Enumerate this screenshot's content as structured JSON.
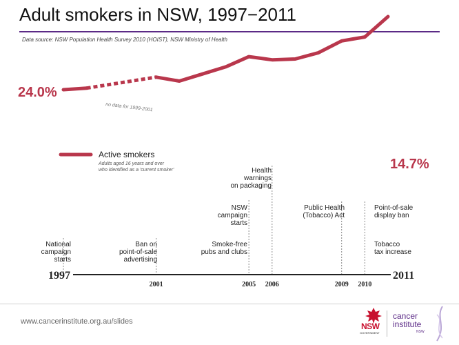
{
  "title": "Adult smokers in NSW, 1997−2011",
  "source": "Data source: NSW Population Health Survey 2010 (HOIST), NSW Ministry of Health",
  "footer": {
    "url": "www.cancerinstitute.org.au/slides",
    "nsw_label": "NSW",
    "nsw_gov": "GOVERNMENT",
    "ci_line1": "cancer",
    "ci_line2": "institute",
    "ci_sub": "NSW"
  },
  "colors": {
    "accent": "#b9374c",
    "purple": "#5b2a86"
  },
  "chart_data": {
    "type": "line",
    "x_range": [
      1997,
      2011
    ],
    "series": [
      {
        "name": "Active smokers",
        "subtitle": "Adults aged 16 years and over who identified as a 'current smoker'",
        "x": [
          1997,
          1998,
          1999,
          2001,
          2002,
          2003,
          2004,
          2005,
          2006,
          2007,
          2008,
          2009,
          2010,
          2011
        ],
        "y": [
          24.0,
          23.8,
          null,
          22.4,
          22.9,
          22.0,
          21.1,
          19.8,
          20.2,
          20.1,
          19.3,
          17.8,
          17.3,
          14.7
        ],
        "gap": {
          "from": 1998,
          "to": 2001,
          "note": "no data for 1999-2001"
        }
      }
    ],
    "value_labels": {
      "start": "24.0%",
      "end": "14.7%"
    },
    "axis": {
      "start_label": "1997",
      "end_label": "2011",
      "ticks": [
        "2001",
        "2005",
        "2006",
        "2009",
        "2010"
      ]
    },
    "events": [
      {
        "year": 1997,
        "label": [
          "National",
          "campaign",
          "starts"
        ],
        "align": "right"
      },
      {
        "year": 2001,
        "label": [
          "Ban on",
          "point-of-sale",
          "advertising"
        ],
        "align": "right"
      },
      {
        "year": 2005,
        "label": [
          "Smoke-free",
          "pubs and clubs"
        ],
        "align": "right"
      },
      {
        "year": 2005,
        "label": [
          "NSW",
          "campaign",
          "starts"
        ],
        "align": "right"
      },
      {
        "year": 2006,
        "label": [
          "Health",
          "warnings",
          "on packaging"
        ],
        "align": "right"
      },
      {
        "year": 2009,
        "label": [
          "Public Health",
          "(Tobacco) Act"
        ],
        "align": "right"
      },
      {
        "year": 2010,
        "label": [
          "Point-of-sale",
          "display ban"
        ],
        "align": "left"
      },
      {
        "year": 2010,
        "label": [
          "Tobacco",
          "tax increase"
        ],
        "align": "left"
      }
    ]
  }
}
